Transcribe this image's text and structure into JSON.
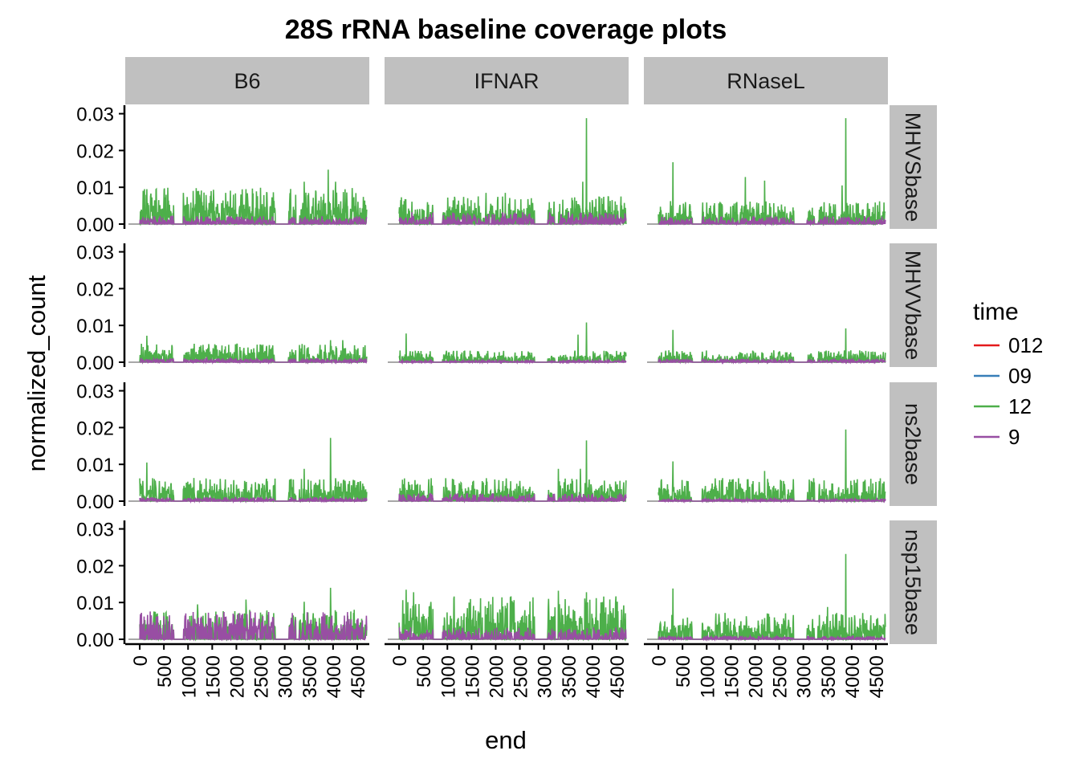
{
  "chart_data": {
    "type": "line",
    "title": "28S rRNA baseline coverage plots",
    "xlabel": "end",
    "ylabel": "normalized_count",
    "xlim": [
      -300,
      4750
    ],
    "ylim": [
      0,
      0.031
    ],
    "x_ticks": [
      0,
      500,
      1000,
      1500,
      2000,
      2500,
      3000,
      3500,
      4000,
      4500
    ],
    "x_tick_labels": [
      "0",
      "500",
      "1000",
      "1500",
      "2000",
      "2500",
      "3000",
      "3500",
      "4000",
      "4500"
    ],
    "y_ticks": [
      0,
      0.01,
      0.02,
      0.03
    ],
    "y_tick_labels": [
      "0.00",
      "0.01",
      "0.02",
      "0.03"
    ],
    "columns": [
      "B6",
      "IFNAR",
      "RNaseL"
    ],
    "rows": [
      "MHVSbase",
      "MHVVbase",
      "ns2base",
      "nsp15base"
    ],
    "legend": {
      "title": "time",
      "position": "right",
      "items": [
        {
          "label": "012",
          "color": "#e41a1c"
        },
        {
          "label": "09",
          "color": "#377eb8"
        },
        {
          "label": "12",
          "color": "#4daf4a"
        },
        {
          "label": "9",
          "color": "#984ea3"
        }
      ]
    },
    "grid": false,
    "facets": [
      {
        "row": "MHVSbase",
        "col": "B6",
        "green_base": 0.0055,
        "purple_base": 0.0012,
        "peaks": [
          [
            150,
            0.0095
          ],
          [
            3900,
            0.0148
          ],
          [
            4050,
            0.0115
          ],
          [
            3400,
            0.0115
          ],
          [
            2200,
            0.0095
          ]
        ]
      },
      {
        "row": "MHVSbase",
        "col": "IFNAR",
        "green_base": 0.0042,
        "purple_base": 0.0018,
        "peaks": [
          [
            3880,
            0.0288
          ],
          [
            3800,
            0.0115
          ],
          [
            2200,
            0.0085
          ],
          [
            1800,
            0.0085
          ]
        ]
      },
      {
        "row": "MHVSbase",
        "col": "RNaseL",
        "green_base": 0.0035,
        "purple_base": 0.0012,
        "peaks": [
          [
            3880,
            0.0288
          ],
          [
            300,
            0.0168
          ],
          [
            1800,
            0.0128
          ],
          [
            2200,
            0.0118
          ],
          [
            3800,
            0.0105
          ]
        ]
      },
      {
        "row": "MHVVbase",
        "col": "B6",
        "green_base": 0.0028,
        "purple_base": 0.0006,
        "peaks": [
          [
            150,
            0.0072
          ],
          [
            4200,
            0.006
          ],
          [
            3950,
            0.006
          ]
        ]
      },
      {
        "row": "MHVVbase",
        "col": "IFNAR",
        "green_base": 0.0018,
        "purple_base": 0.0003,
        "peaks": [
          [
            3880,
            0.0108
          ],
          [
            150,
            0.0078
          ],
          [
            3700,
            0.0075
          ]
        ]
      },
      {
        "row": "MHVVbase",
        "col": "RNaseL",
        "green_base": 0.0018,
        "purple_base": 0.0005,
        "peaks": [
          [
            3880,
            0.0092
          ],
          [
            300,
            0.0088
          ]
        ]
      },
      {
        "row": "ns2base",
        "col": "B6",
        "green_base": 0.0035,
        "purple_base": 0.0006,
        "peaks": [
          [
            3950,
            0.0172
          ],
          [
            150,
            0.0105
          ],
          [
            3400,
            0.0088
          ]
        ]
      },
      {
        "row": "ns2base",
        "col": "IFNAR",
        "green_base": 0.0035,
        "purple_base": 0.0012,
        "peaks": [
          [
            3880,
            0.0165
          ],
          [
            3750,
            0.0088
          ],
          [
            3300,
            0.0088
          ]
        ]
      },
      {
        "row": "ns2base",
        "col": "RNaseL",
        "green_base": 0.0035,
        "purple_base": 0.0004,
        "peaks": [
          [
            3880,
            0.0195
          ],
          [
            300,
            0.0108
          ],
          [
            2200,
            0.0082
          ]
        ]
      },
      {
        "row": "nsp15base",
        "col": "B6",
        "green_base": 0.0045,
        "purple_base": 0.0042,
        "peaks": [
          [
            3950,
            0.014
          ],
          [
            3400,
            0.0102
          ],
          [
            2200,
            0.0108
          ],
          [
            1200,
            0.0095
          ]
        ]
      },
      {
        "row": "nsp15base",
        "col": "IFNAR",
        "green_base": 0.0065,
        "purple_base": 0.0018,
        "peaks": [
          [
            3880,
            0.0128
          ],
          [
            3300,
            0.0132
          ],
          [
            300,
            0.0128
          ],
          [
            150,
            0.0135
          ]
        ]
      },
      {
        "row": "nsp15base",
        "col": "RNaseL",
        "green_base": 0.004,
        "purple_base": 0.0005,
        "peaks": [
          [
            3880,
            0.0232
          ],
          [
            300,
            0.0138
          ],
          [
            3500,
            0.0088
          ]
        ]
      }
    ]
  }
}
